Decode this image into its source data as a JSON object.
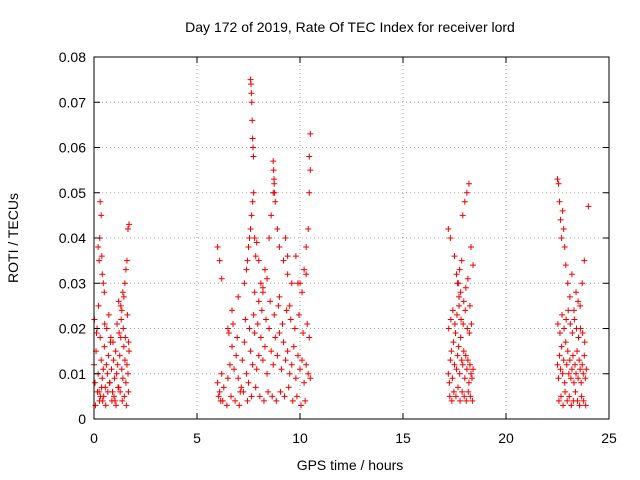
{
  "chart_data": {
    "type": "scatter",
    "title": "Day 172 of 2019, Rate Of TEC Index for receiver lord",
    "xlabel": "GPS time / hours",
    "ylabel": "ROTI / TECUs",
    "xlim": [
      0,
      25
    ],
    "ylim": [
      0,
      0.08
    ],
    "xticks": [
      0,
      5,
      10,
      15,
      20,
      25
    ],
    "yticks": [
      0,
      0.01,
      0.02,
      0.03,
      0.04,
      0.05,
      0.06,
      0.07,
      0.08
    ],
    "xtick_labels": [
      "0",
      "5",
      "10",
      "15",
      "20",
      "25"
    ],
    "ytick_labels": [
      "0",
      "0.01",
      "0.02",
      "0.03",
      "0.04",
      "0.05",
      "0.06",
      "0.07",
      "0.08"
    ],
    "grid": true,
    "marker": "+",
    "color": "#ee0000",
    "series": [
      {
        "x": [
          0.0,
          0.05,
          0.1,
          0.15,
          0.2,
          0.25,
          0.3,
          0.35,
          0.4,
          0.45,
          0.5,
          0.55,
          0.6,
          0.65,
          0.7,
          0.75,
          0.8,
          0.85,
          0.9,
          0.95,
          1.0,
          1.05,
          1.1,
          1.15,
          1.2,
          1.25,
          1.3,
          1.35,
          1.4,
          1.45,
          1.5,
          1.55,
          1.6,
          1.65,
          1.7,
          0.02,
          0.12,
          0.22,
          0.32,
          0.42,
          0.52,
          0.62,
          0.72,
          0.82,
          0.92,
          1.02,
          1.12,
          1.22,
          1.32,
          1.42,
          1.52,
          1.62,
          1.68,
          0.07,
          0.17,
          0.27,
          0.37,
          0.47,
          0.57,
          0.67,
          0.77,
          0.87,
          0.97,
          1.07,
          1.17,
          1.27,
          1.37,
          1.47,
          1.57,
          1.67,
          0.2,
          0.25,
          0.3,
          0.35,
          0.4,
          0.45,
          0.5,
          1.2,
          1.3,
          1.4,
          1.5,
          1.55,
          1.6,
          1.65,
          1.7,
          1.35,
          1.45,
          0.28,
          0.38
        ],
        "y": [
          0.012,
          0.008,
          0.015,
          0.02,
          0.01,
          0.006,
          0.018,
          0.013,
          0.009,
          0.011,
          0.016,
          0.007,
          0.012,
          0.01,
          0.014,
          0.008,
          0.017,
          0.011,
          0.006,
          0.013,
          0.009,
          0.015,
          0.01,
          0.012,
          0.007,
          0.014,
          0.018,
          0.011,
          0.009,
          0.016,
          0.013,
          0.008,
          0.012,
          0.01,
          0.015,
          0.022,
          0.019,
          0.025,
          0.005,
          0.004,
          0.021,
          0.02,
          0.023,
          0.018,
          0.017,
          0.004,
          0.021,
          0.019,
          0.022,
          0.02,
          0.018,
          0.023,
          0.017,
          0.003,
          0.006,
          0.004,
          0.007,
          0.005,
          0.003,
          0.006,
          0.008,
          0.004,
          0.005,
          0.003,
          0.007,
          0.006,
          0.004,
          0.005,
          0.003,
          0.006,
          0.038,
          0.035,
          0.048,
          0.045,
          0.032,
          0.03,
          0.028,
          0.026,
          0.025,
          0.028,
          0.03,
          0.033,
          0.035,
          0.042,
          0.043,
          0.024,
          0.027,
          0.04,
          0.036
        ]
      },
      {
        "x": [
          6.0,
          6.1,
          6.2,
          6.3,
          6.5,
          6.6,
          6.7,
          6.8,
          6.9,
          7.0,
          7.1,
          7.2,
          7.3,
          7.4,
          7.5,
          7.6,
          7.7,
          7.8,
          7.9,
          8.0,
          8.1,
          8.2,
          8.3,
          8.4,
          8.5,
          8.6,
          8.7,
          8.8,
          8.9,
          9.0,
          9.1,
          9.2,
          9.3,
          9.4,
          9.5,
          9.6,
          9.7,
          9.8,
          9.9,
          10.0,
          10.1,
          10.2,
          10.3,
          10.4,
          10.5,
          6.05,
          6.25,
          6.55,
          6.75,
          6.95,
          7.15,
          7.35,
          7.55,
          7.75,
          7.95,
          8.15,
          8.35,
          8.55,
          8.75,
          8.95,
          9.15,
          9.35,
          9.55,
          9.75,
          9.95,
          10.15,
          10.35,
          10.45,
          6.15,
          6.45,
          6.65,
          6.85,
          7.05,
          7.25,
          7.45,
          7.65,
          7.85,
          8.05,
          8.25,
          8.45,
          8.65,
          8.85,
          9.05,
          9.25,
          9.45,
          9.65,
          9.85,
          10.05,
          10.25,
          6.0,
          6.1,
          6.2,
          6.5,
          6.7,
          7.0,
          7.3,
          7.4,
          7.45,
          7.5,
          7.55,
          7.6,
          7.65,
          7.7,
          7.75,
          7.8,
          7.85,
          7.9,
          8.0,
          8.1,
          8.2,
          8.3,
          8.5,
          8.6,
          8.7,
          8.75,
          8.8,
          8.9,
          9.0,
          9.2,
          9.4,
          9.6,
          9.8,
          10.0,
          10.2,
          10.3,
          10.4,
          10.45,
          10.5,
          7.6,
          7.62,
          7.64,
          7.66,
          7.68,
          7.7,
          7.72,
          7.74,
          8.7,
          8.72,
          8.74,
          8.76,
          9.3,
          9.4,
          10.5,
          10.45,
          7.8,
          8.0,
          8.2,
          8.4,
          9.0,
          9.5,
          9.9,
          10.1,
          10.3
        ],
        "y": [
          0.008,
          0.006,
          0.01,
          0.007,
          0.009,
          0.012,
          0.016,
          0.011,
          0.014,
          0.009,
          0.006,
          0.013,
          0.017,
          0.01,
          0.008,
          0.015,
          0.012,
          0.019,
          0.011,
          0.014,
          0.018,
          0.013,
          0.016,
          0.01,
          0.02,
          0.015,
          0.012,
          0.018,
          0.014,
          0.019,
          0.011,
          0.017,
          0.013,
          0.015,
          0.01,
          0.012,
          0.016,
          0.009,
          0.014,
          0.011,
          0.013,
          0.008,
          0.012,
          0.01,
          0.009,
          0.005,
          0.004,
          0.019,
          0.021,
          0.018,
          0.007,
          0.022,
          0.02,
          0.023,
          0.021,
          0.024,
          0.022,
          0.026,
          0.023,
          0.025,
          0.021,
          0.024,
          0.022,
          0.02,
          0.023,
          0.019,
          0.021,
          0.018,
          0.004,
          0.003,
          0.005,
          0.004,
          0.003,
          0.006,
          0.004,
          0.005,
          0.007,
          0.005,
          0.004,
          0.006,
          0.005,
          0.004,
          0.006,
          0.005,
          0.007,
          0.004,
          0.005,
          0.003,
          0.004,
          0.038,
          0.035,
          0.031,
          0.02,
          0.024,
          0.027,
          0.03,
          0.033,
          0.035,
          0.038,
          0.04,
          0.042,
          0.045,
          0.048,
          0.05,
          0.04,
          0.036,
          0.039,
          0.035,
          0.03,
          0.028,
          0.033,
          0.04,
          0.045,
          0.05,
          0.052,
          0.048,
          0.042,
          0.038,
          0.035,
          0.032,
          0.03,
          0.036,
          0.03,
          0.033,
          0.038,
          0.042,
          0.05,
          0.055,
          0.075,
          0.074,
          0.072,
          0.07,
          0.066,
          0.062,
          0.06,
          0.058,
          0.057,
          0.055,
          0.053,
          0.05,
          0.04,
          0.036,
          0.063,
          0.058,
          0.028,
          0.026,
          0.029,
          0.031,
          0.027,
          0.025,
          0.03,
          0.028,
          0.032
        ]
      },
      {
        "x": [
          17.2,
          17.25,
          17.3,
          17.35,
          17.4,
          17.45,
          17.5,
          17.55,
          17.6,
          17.65,
          17.7,
          17.75,
          17.8,
          17.85,
          17.9,
          17.95,
          18.0,
          18.05,
          18.1,
          18.15,
          18.2,
          18.25,
          18.3,
          18.35,
          18.4,
          17.22,
          17.32,
          17.42,
          17.52,
          17.62,
          17.72,
          17.82,
          17.92,
          18.02,
          18.12,
          18.22,
          18.32,
          17.27,
          17.37,
          17.47,
          17.57,
          17.67,
          17.77,
          17.87,
          17.97,
          18.07,
          18.17,
          18.27,
          18.37,
          17.2,
          17.3,
          17.5,
          17.6,
          17.7,
          17.75,
          17.8,
          17.85,
          17.9,
          18.0,
          18.1,
          18.2,
          18.3,
          18.4,
          17.65,
          17.72,
          17.95,
          18.05,
          18.15,
          18.25
        ],
        "y": [
          0.01,
          0.008,
          0.013,
          0.015,
          0.009,
          0.017,
          0.012,
          0.019,
          0.011,
          0.014,
          0.016,
          0.01,
          0.018,
          0.013,
          0.012,
          0.015,
          0.009,
          0.014,
          0.011,
          0.013,
          0.008,
          0.012,
          0.01,
          0.009,
          0.011,
          0.02,
          0.022,
          0.024,
          0.021,
          0.023,
          0.025,
          0.022,
          0.021,
          0.024,
          0.02,
          0.019,
          0.021,
          0.005,
          0.004,
          0.006,
          0.005,
          0.007,
          0.004,
          0.006,
          0.005,
          0.004,
          0.006,
          0.005,
          0.004,
          0.042,
          0.04,
          0.036,
          0.032,
          0.03,
          0.033,
          0.028,
          0.035,
          0.045,
          0.048,
          0.05,
          0.052,
          0.038,
          0.034,
          0.03,
          0.027,
          0.026,
          0.029,
          0.031,
          0.025
        ]
      },
      {
        "x": [
          22.5,
          22.55,
          22.6,
          22.65,
          22.7,
          22.75,
          22.8,
          22.85,
          22.9,
          22.95,
          23.0,
          23.05,
          23.1,
          23.15,
          23.2,
          23.25,
          23.3,
          23.35,
          23.4,
          23.45,
          23.5,
          23.55,
          23.6,
          23.65,
          23.7,
          23.75,
          23.8,
          23.85,
          23.9,
          22.52,
          22.62,
          22.72,
          22.82,
          22.92,
          23.02,
          23.12,
          23.22,
          23.32,
          23.42,
          23.52,
          23.62,
          23.72,
          23.82,
          22.57,
          22.67,
          22.77,
          22.87,
          22.97,
          23.07,
          23.17,
          23.27,
          23.37,
          23.47,
          23.57,
          23.67,
          23.77,
          23.87,
          22.5,
          22.55,
          22.6,
          22.65,
          22.7,
          22.75,
          22.8,
          22.85,
          22.9,
          23.0,
          23.2,
          23.4,
          23.5,
          23.6,
          23.7,
          23.8,
          24.0,
          23.1,
          23.3
        ],
        "y": [
          0.012,
          0.009,
          0.014,
          0.011,
          0.016,
          0.01,
          0.013,
          0.008,
          0.017,
          0.012,
          0.015,
          0.01,
          0.013,
          0.009,
          0.011,
          0.014,
          0.008,
          0.012,
          0.01,
          0.015,
          0.009,
          0.013,
          0.011,
          0.008,
          0.012,
          0.01,
          0.014,
          0.009,
          0.011,
          0.021,
          0.019,
          0.023,
          0.02,
          0.022,
          0.024,
          0.021,
          0.019,
          0.022,
          0.02,
          0.018,
          0.02,
          0.019,
          0.017,
          0.004,
          0.005,
          0.003,
          0.006,
          0.004,
          0.005,
          0.003,
          0.004,
          0.006,
          0.004,
          0.003,
          0.005,
          0.004,
          0.003,
          0.053,
          0.052,
          0.048,
          0.044,
          0.04,
          0.046,
          0.042,
          0.038,
          0.034,
          0.03,
          0.032,
          0.028,
          0.026,
          0.025,
          0.03,
          0.035,
          0.047,
          0.027,
          0.024
        ]
      }
    ]
  }
}
